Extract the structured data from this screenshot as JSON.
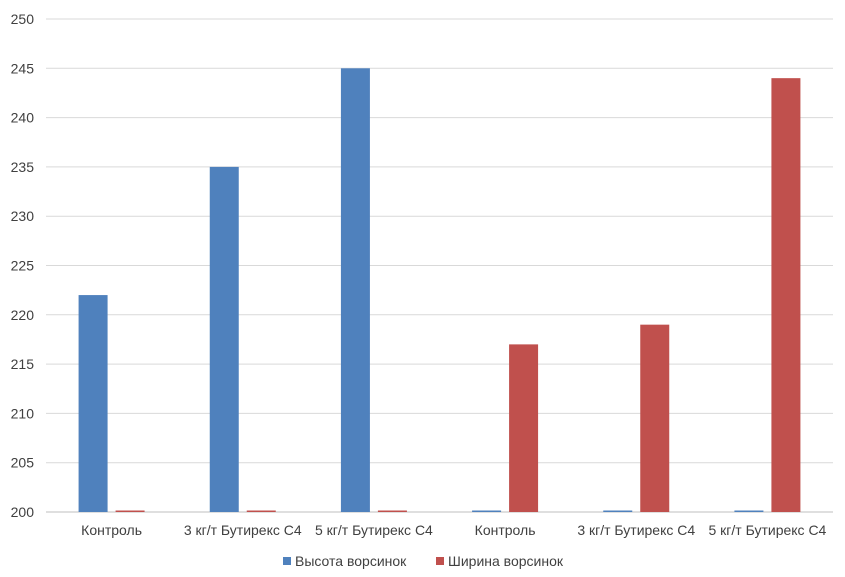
{
  "chart_data": {
    "type": "bar",
    "categories": [
      "Контроль",
      "3 кг/т Бутирекс С4",
      "5 кг/т Бутирекс  С4",
      "Контроль",
      "3 кг/т Бутирекс  С4",
      "5 кг/т Бутирекс  С4"
    ],
    "series": [
      {
        "name": "Высота ворсинок",
        "color": "#4f81bd",
        "values": [
          222,
          235,
          245,
          200,
          200,
          200
        ]
      },
      {
        "name": "Ширина ворсинок",
        "color": "#c0504d",
        "values": [
          200,
          200,
          200,
          217,
          219,
          244
        ]
      }
    ],
    "title": "",
    "xlabel": "",
    "ylabel": "",
    "ylim": [
      200,
      250
    ],
    "yticks": [
      200,
      205,
      210,
      215,
      220,
      225,
      230,
      235,
      240,
      245,
      250
    ],
    "grid": true,
    "legend_position": "bottom"
  }
}
